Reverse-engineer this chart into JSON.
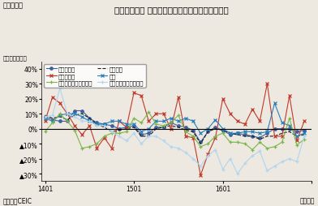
{
  "title": "シンガポール 製造業生産指数（分野別）の伸び率",
  "ylabel": "（前年同月比）",
  "xlabel_left": "（資料）CEIC",
  "xlabel_right": "（月次）",
  "fig_label": "（図表５）",
  "ylim": [
    -35,
    45
  ],
  "yticks": [
    -30,
    -20,
    -10,
    0,
    10,
    20,
    30,
    40
  ],
  "ytick_labels": [
    "▲30%",
    "▲20%",
    "▲10%",
    "0%",
    "10%",
    "20%",
    "30%",
    "40%"
  ],
  "xtick_positions": [
    0,
    12,
    24,
    36
  ],
  "xtick_labels": [
    "1401",
    "1501",
    "1601",
    ""
  ],
  "n_points": 36,
  "series_order": [
    "製造業生産",
    "電子製品",
    "バイオ医療",
    "化学",
    "精密エンジニアリング",
    "輸送エンジニアリング"
  ],
  "series": {
    "製造業生産": {
      "color": "#3f5fa0",
      "marker": "o",
      "linestyle": "-",
      "markersize": 2.5,
      "linewidth": 0.8,
      "values": [
        8,
        6,
        5,
        5,
        12,
        12,
        7,
        4,
        3,
        2,
        0,
        1,
        2,
        -4,
        -3,
        1,
        1,
        4,
        2,
        1,
        -1,
        -9,
        -2,
        1,
        -1,
        -4,
        -3,
        -4,
        -5,
        -6,
        -3,
        0,
        0,
        0,
        -2,
        -1
      ]
    },
    "バイオ医療": {
      "color": "#c0392b",
      "marker": "x",
      "linestyle": "-",
      "markersize": 3.5,
      "linewidth": 0.8,
      "values": [
        5,
        21,
        17,
        10,
        2,
        -4,
        2,
        -13,
        -6,
        -13,
        5,
        1,
        24,
        22,
        5,
        10,
        10,
        0,
        21,
        -5,
        -6,
        -31,
        -17,
        -6,
        20,
        10,
        5,
        3,
        13,
        5,
        30,
        -5,
        -5,
        22,
        -8,
        5
      ]
    },
    "電子製品": {
      "color": "#1a1a1a",
      "marker": "None",
      "linestyle": "--",
      "markersize": 2.5,
      "linewidth": 0.8,
      "values": [
        9,
        7,
        8,
        6,
        9,
        10,
        7,
        3,
        1,
        -2,
        -1,
        0,
        1,
        -5,
        -5,
        0,
        1,
        2,
        1,
        -1,
        -2,
        -10,
        -2,
        0,
        -1,
        -3,
        -4,
        -5,
        -5,
        -7,
        -5,
        -5,
        -3,
        -2,
        -5,
        -4
      ]
    },
    "化学": {
      "color": "#2980b9",
      "marker": "x",
      "linestyle": "-",
      "markersize": 3,
      "linewidth": 0.8,
      "values": [
        7,
        5,
        9,
        10,
        10,
        8,
        5,
        3,
        3,
        5,
        5,
        3,
        3,
        -2,
        0,
        5,
        5,
        7,
        5,
        7,
        5,
        -3,
        0,
        6,
        0,
        -3,
        -3,
        -2,
        -2,
        -3,
        -2,
        17,
        4,
        2,
        -5,
        -3
      ]
    },
    "精密エンジニアリング": {
      "color": "#7ab648",
      "marker": "+",
      "linestyle": "-",
      "markersize": 3.5,
      "linewidth": 0.8,
      "values": [
        -2,
        4,
        10,
        5,
        -1,
        -13,
        -12,
        -10,
        -5,
        -3,
        -3,
        -2,
        7,
        4,
        11,
        3,
        2,
        4,
        9,
        -2,
        -5,
        -12,
        -10,
        -5,
        -3,
        -9,
        -9,
        -10,
        -14,
        -9,
        -13,
        -12,
        -9,
        7,
        -11,
        -7
      ]
    },
    "輸送エンジニアリング": {
      "color": "#aed6f1",
      "marker": "+",
      "linestyle": "-",
      "markersize": 3.5,
      "linewidth": 0.8,
      "values": [
        8,
        9,
        27,
        10,
        8,
        5,
        5,
        2,
        2,
        -2,
        -5,
        -8,
        -3,
        -10,
        -5,
        -5,
        -8,
        -12,
        -13,
        -16,
        -20,
        -25,
        -18,
        -14,
        -27,
        -20,
        -30,
        -23,
        -18,
        -15,
        -28,
        -25,
        -22,
        -20,
        -22,
        -5
      ]
    }
  }
}
